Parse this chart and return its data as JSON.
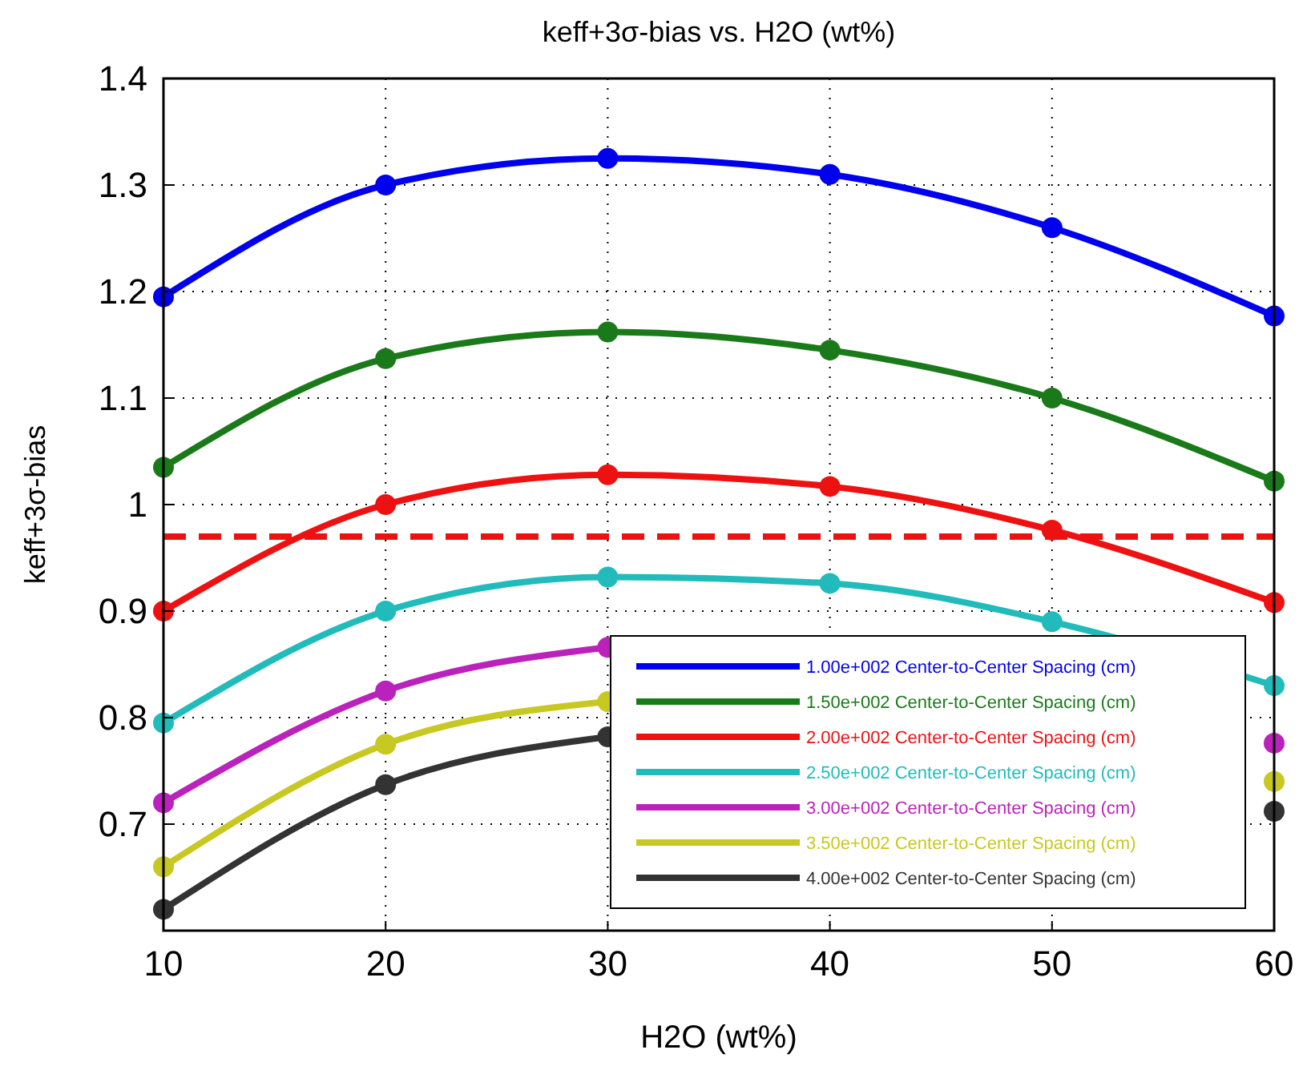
{
  "chart_data": {
    "type": "line",
    "title": "keff+3σ-bias vs. H2O (wt%)",
    "xlabel": "H2O (wt%)",
    "ylabel": "keff+3σ-bias",
    "x": [
      10,
      20,
      30,
      40,
      50,
      60
    ],
    "xlim": [
      10,
      60
    ],
    "xticks": [
      10,
      20,
      30,
      40,
      50,
      60
    ],
    "ylim": [
      0.6,
      1.4
    ],
    "yticks": [
      0.7,
      0.8,
      0.9,
      1,
      1.1,
      1.2,
      1.3,
      1.4
    ],
    "grid": true,
    "legend": "bottom right",
    "marker": "circle",
    "line_style": "solid",
    "series": [
      {
        "name": "1.00e+002 Center-to-Center Spacing (cm)",
        "color": "#0000ee",
        "values": [
          1.195,
          1.3,
          1.325,
          1.31,
          1.26,
          1.177
        ]
      },
      {
        "name": "1.50e+002 Center-to-Center Spacing (cm)",
        "color": "#1a7a1a",
        "values": [
          1.035,
          1.137,
          1.162,
          1.145,
          1.1,
          1.022
        ]
      },
      {
        "name": "2.00e+002 Center-to-Center Spacing (cm)",
        "color": "#ee1111",
        "values": [
          0.9,
          1.0,
          1.028,
          1.017,
          0.976,
          0.908
        ]
      },
      {
        "name": "2.50e+002 Center-to-Center Spacing (cm)",
        "color": "#22bbbb",
        "values": [
          0.795,
          0.9,
          0.932,
          0.926,
          0.89,
          0.83
        ]
      },
      {
        "name": "3.00e+002 Center-to-Center Spacing (cm)",
        "color": "#bb22bb",
        "values": [
          0.72,
          0.825,
          0.866,
          null,
          null,
          0.776
        ]
      },
      {
        "name": "3.50e+002 Center-to-Center Spacing (cm)",
        "color": "#c8c822",
        "values": [
          0.66,
          0.775,
          0.815,
          null,
          null,
          0.74
        ]
      },
      {
        "name": "4.00e+002 Center-to-Center Spacing (cm)",
        "color": "#333333",
        "values": [
          0.62,
          0.737,
          0.782,
          null,
          null,
          0.712
        ]
      }
    ],
    "ref_lines": [
      {
        "axis": "y",
        "value": 0.97,
        "color": "#ee1111",
        "line_style": "dashed"
      }
    ]
  }
}
